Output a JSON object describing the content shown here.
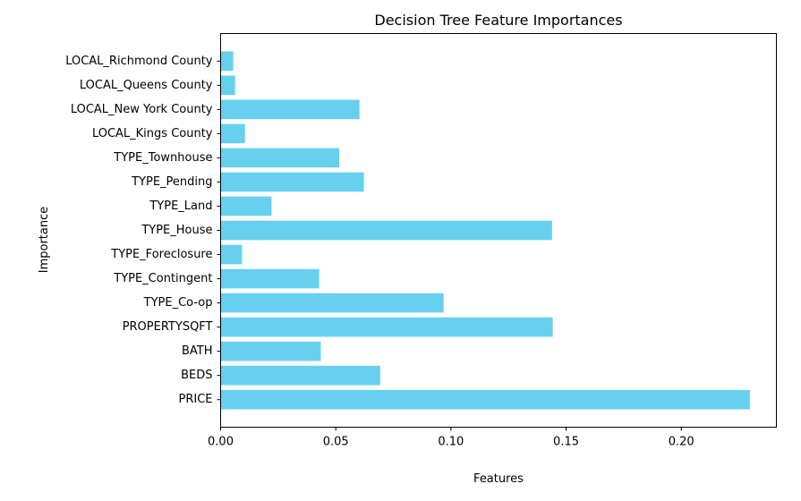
{
  "chart_data": {
    "type": "bar",
    "orientation": "horizontal",
    "title": "Decision Tree Feature Importances",
    "xlabel": "Features",
    "ylabel": "Importance",
    "categories": [
      "PRICE",
      "BEDS",
      "BATH",
      "PROPERTYSQFT",
      "TYPE_Co-op",
      "TYPE_Contingent",
      "TYPE_Foreclosure",
      "TYPE_House",
      "TYPE_Land",
      "TYPE_Pending",
      "TYPE_Townhouse",
      "LOCAL_Kings County",
      "LOCAL_New York County",
      "LOCAL_Queens County",
      "LOCAL_Richmond County"
    ],
    "values": [
      0.2298,
      0.0693,
      0.0435,
      0.1442,
      0.0968,
      0.0428,
      0.0093,
      0.1439,
      0.0221,
      0.0622,
      0.0515,
      0.0106,
      0.0603,
      0.0063,
      0.0055
    ],
    "xlim": [
      0,
      0.2413
    ],
    "xticks": [
      0.0,
      0.05,
      0.1,
      0.15,
      0.2
    ],
    "xtick_labels": [
      "0.00",
      "0.05",
      "0.10",
      "0.15",
      "0.20"
    ],
    "grid": false,
    "bar_color": "#66d0ee"
  }
}
